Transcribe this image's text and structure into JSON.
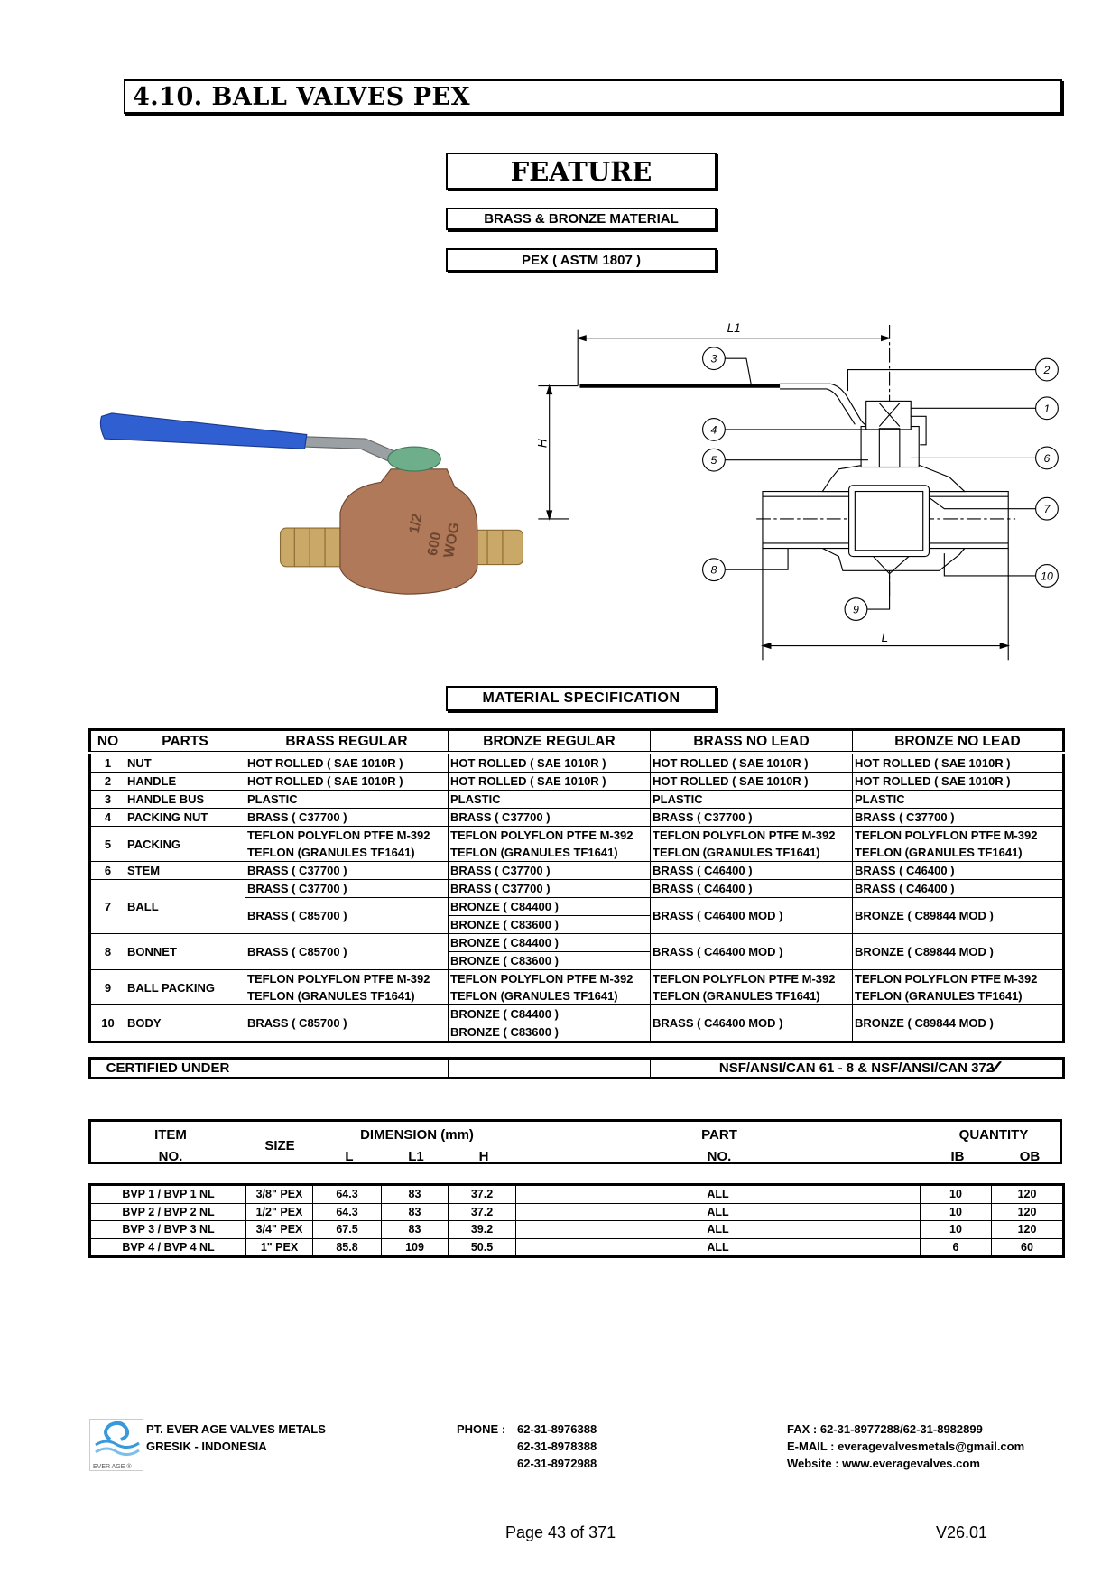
{
  "header": {
    "title": "4.10.  BALL VALVES PEX",
    "feature_label": "FEATURE",
    "features": [
      "BRASS & BRONZE MATERIAL",
      "PEX ( ASTM 1807 )"
    ]
  },
  "photo": {
    "marking": [
      "1/2",
      "600",
      "WOG"
    ],
    "handle_color": "#2f5fd0",
    "body_color": "#b07a5a",
    "nut_color": "#6fae8a"
  },
  "drawing": {
    "dim_labels": {
      "L1": "L1",
      "H": "H",
      "L": "L"
    },
    "callouts": [
      "1",
      "2",
      "3",
      "4",
      "5",
      "6",
      "7",
      "8",
      "9",
      "10"
    ]
  },
  "materials": {
    "title": "MATERIAL SPECIFICATION",
    "headers": [
      "NO",
      "PARTS",
      "BRASS REGULAR",
      "BRONZE REGULAR",
      "BRASS NO LEAD",
      "BRONZE NO LEAD"
    ],
    "rows": [
      {
        "no": "1",
        "part": "NUT",
        "cols": [
          [
            "HOT ROLLED ( SAE 1010R )"
          ],
          [
            "HOT ROLLED ( SAE 1010R )"
          ],
          [
            "HOT ROLLED ( SAE 1010R )"
          ],
          [
            "HOT ROLLED ( SAE 1010R )"
          ]
        ]
      },
      {
        "no": "2",
        "part": "HANDLE",
        "cols": [
          [
            "HOT ROLLED ( SAE 1010R )"
          ],
          [
            "HOT ROLLED ( SAE 1010R )"
          ],
          [
            "HOT ROLLED ( SAE 1010R )"
          ],
          [
            "HOT ROLLED ( SAE 1010R )"
          ]
        ]
      },
      {
        "no": "3",
        "part": "HANDLE BUS",
        "cols": [
          [
            "PLASTIC"
          ],
          [
            "PLASTIC"
          ],
          [
            "PLASTIC"
          ],
          [
            "PLASTIC"
          ]
        ]
      },
      {
        "no": "4",
        "part": "PACKING NUT",
        "cols": [
          [
            "BRASS ( C37700 )"
          ],
          [
            "BRASS ( C37700 )"
          ],
          [
            "BRASS ( C37700 )"
          ],
          [
            "BRASS ( C37700 )"
          ]
        ]
      },
      {
        "no": "5",
        "part": "PACKING",
        "cols": [
          [
            "TEFLON POLYFLON PTFE M-392\nTEFLON (GRANULES TF1641)"
          ],
          [
            "TEFLON POLYFLON PTFE M-392\nTEFLON (GRANULES TF1641)"
          ],
          [
            "TEFLON POLYFLON PTFE M-392\nTEFLON (GRANULES TF1641)"
          ],
          [
            "TEFLON POLYFLON PTFE M-392\nTEFLON (GRANULES TF1641)"
          ]
        ]
      },
      {
        "no": "6",
        "part": "STEM",
        "cols": [
          [
            "BRASS ( C37700 )"
          ],
          [
            "BRASS ( C37700 )"
          ],
          [
            "BRASS ( C46400 )"
          ],
          [
            "BRASS ( C46400 )"
          ]
        ]
      },
      {
        "no": "7",
        "part": "BALL",
        "cols": [
          [
            "BRASS ( C37700 )",
            "BRASS ( C85700 )"
          ],
          [
            "BRASS ( C37700 )",
            "BRONZE ( C84400 )",
            "BRONZE ( C83600 )"
          ],
          [
            "BRASS ( C46400 )",
            "BRASS ( C46400 MOD )"
          ],
          [
            "BRASS ( C46400 )",
            "BRONZE ( C89844 MOD )"
          ]
        ]
      },
      {
        "no": "8",
        "part": "BONNET",
        "cols": [
          [
            "BRASS ( C85700 )"
          ],
          [
            "BRONZE ( C84400 )",
            "BRONZE ( C83600 )"
          ],
          [
            "BRASS ( C46400 MOD )"
          ],
          [
            "BRONZE ( C89844 MOD )"
          ]
        ]
      },
      {
        "no": "9",
        "part": "BALL PACKING",
        "cols": [
          [
            "TEFLON POLYFLON PTFE M-392\nTEFLON (GRANULES TF1641)"
          ],
          [
            "TEFLON POLYFLON PTFE M-392\nTEFLON (GRANULES TF1641)"
          ],
          [
            "TEFLON POLYFLON PTFE M-392\nTEFLON (GRANULES TF1641)"
          ],
          [
            "TEFLON POLYFLON PTFE M-392\nTEFLON (GRANULES TF1641)"
          ]
        ]
      },
      {
        "no": "10",
        "part": "BODY",
        "cols": [
          [
            "BRASS ( C85700 )"
          ],
          [
            "BRONZE ( C84400 )",
            "BRONZE ( C83600 )"
          ],
          [
            "BRASS ( C46400 MOD )"
          ],
          [
            "BRONZE ( C89844 MOD )"
          ]
        ]
      }
    ],
    "certified_label": "CERTIFIED UNDER",
    "certified_value": "NSF/ANSI/CAN 61 - 8 & NSF/ANSI/CAN 372"
  },
  "dimensions": {
    "headers": {
      "item": "ITEM",
      "item_no": "NO.",
      "size": "SIZE",
      "dimension": "DIMENSION (mm)",
      "L": "L",
      "L1": "L1",
      "H": "H",
      "part": "PART",
      "part_no": "NO.",
      "quantity": "QUANTITY",
      "ib": "IB",
      "ob": "OB"
    },
    "rows": [
      {
        "item": "BVP 1 / BVP 1 NL",
        "size": "3/8\" PEX",
        "L": "64.3",
        "L1": "83",
        "H": "37.2",
        "part": "ALL",
        "ib": "10",
        "ob": "120"
      },
      {
        "item": "BVP 2 / BVP 2 NL",
        "size": "1/2\" PEX",
        "L": "64.3",
        "L1": "83",
        "H": "37.2",
        "part": "ALL",
        "ib": "10",
        "ob": "120"
      },
      {
        "item": "BVP 3 / BVP 3 NL",
        "size": "3/4\" PEX",
        "L": "67.5",
        "L1": "83",
        "H": "39.2",
        "part": "ALL",
        "ib": "10",
        "ob": "120"
      },
      {
        "item": "BVP 4 / BVP 4 NL",
        "size": "1\" PEX",
        "L": "85.8",
        "L1": "109",
        "H": "50.5",
        "part": "ALL",
        "ib": "6",
        "ob": "60"
      }
    ]
  },
  "footer": {
    "logo_text": "EVER AGE ®",
    "logo_color": "#3a9ad9",
    "company": "PT. EVER AGE VALVES METALS",
    "location": "GRESIK - INDONESIA",
    "phone_label": "PHONE :",
    "phones": [
      "62-31-8976388",
      "62-31-8978388",
      "62-31-8972988"
    ],
    "fax": "FAX  : 62-31-8977288/62-31-8982899",
    "email": "E-MAIL  : everagevalvesmetals@gmail.com",
    "website": "Website  : www.everagevalves.com",
    "page": "Page 43 of 371",
    "version": "V26.01"
  }
}
